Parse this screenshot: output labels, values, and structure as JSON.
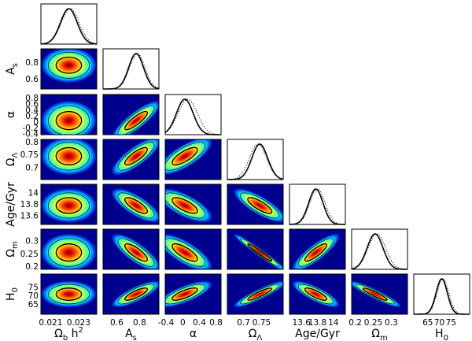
{
  "chart_data": {
    "type": "corner-plot",
    "title": "",
    "params": [
      {
        "key": "ombh2",
        "label": "Ωb h²",
        "range": [
          0.0203,
          0.0243
        ],
        "ticks": [
          "0.021",
          "0.023"
        ],
        "tickvals": [
          0.021,
          0.023
        ],
        "mean": 0.0223,
        "sigma": 0.0006,
        "mean_alt": 0.0224,
        "sigma_alt": 0.00063
      },
      {
        "key": "As",
        "label": "As",
        "range": [
          0.48,
          0.97
        ],
        "ticks": [
          "0.6",
          "0.8"
        ],
        "tickvals": [
          0.6,
          0.8
        ],
        "mean": 0.77,
        "sigma": 0.065,
        "mean_alt": 0.78,
        "sigma_alt": 0.068
      },
      {
        "key": "alpha",
        "label": "α",
        "range": [
          -0.42,
          0.92
        ],
        "ticks": [
          "-0.4",
          "0",
          "0.4",
          "0.8"
        ],
        "tickvals": [
          -0.4,
          0,
          0.4,
          0.8
        ],
        "yticks": [
          "0.8",
          "0.6",
          "0.4",
          "0.2",
          "0",
          "-0.2",
          "-0.4"
        ],
        "ytickvals": [
          0.8,
          0.6,
          0.4,
          0.2,
          0,
          -0.2,
          -0.4
        ],
        "mean": 0.05,
        "sigma": 0.2,
        "mean_alt": 0.12,
        "sigma_alt": 0.23
      },
      {
        "key": "OmL",
        "label": "ΩΛ",
        "range": [
          0.655,
          0.81
        ],
        "ticks": [
          "0.7",
          "0.75"
        ],
        "tickvals": [
          0.7,
          0.75
        ],
        "yticks": [
          "0.8",
          "0.75",
          "0.7"
        ],
        "ytickvals": [
          0.8,
          0.75,
          0.7
        ],
        "mean": 0.745,
        "sigma": 0.022,
        "mean_alt": 0.74,
        "sigma_alt": 0.024
      },
      {
        "key": "age",
        "label": "Age/Gyr",
        "range": [
          13.45,
          14.15
        ],
        "ticks": [
          "13.6",
          "13.8",
          "14"
        ],
        "tickvals": [
          13.6,
          13.8,
          14.0
        ],
        "yticks": [
          "14",
          "13.8",
          "13.6"
        ],
        "ytickvals": [
          14.0,
          13.8,
          13.6
        ],
        "mean": 13.78,
        "sigma": 0.09,
        "mean_alt": 13.8,
        "sigma_alt": 0.095
      },
      {
        "key": "Omm",
        "label": "Ωm",
        "range": [
          0.19,
          0.345
        ],
        "ticks": [
          "0.2",
          "0.25",
          "0.3"
        ],
        "tickvals": [
          0.2,
          0.25,
          0.3
        ],
        "yticks": [
          "0.3",
          "0.25",
          "0.2"
        ],
        "ytickvals": [
          0.3,
          0.25,
          0.2
        ],
        "mean": 0.255,
        "sigma": 0.022,
        "mean_alt": 0.26,
        "sigma_alt": 0.024
      },
      {
        "key": "H0",
        "label": "H0",
        "range": [
          59,
          83
        ],
        "ticks": [
          "65",
          "70",
          "75"
        ],
        "tickvals": [
          65,
          70,
          75
        ],
        "yticks": [
          "75",
          "70",
          "65"
        ],
        "ytickvals": [
          75,
          70,
          65
        ],
        "mean": 71,
        "sigma": 2.4,
        "mean_alt": 71.5,
        "sigma_alt": 2.5
      }
    ],
    "correlations": [
      [
        1,
        0,
        0,
        0,
        0,
        0,
        0
      ],
      [
        0,
        1,
        0.85,
        0.8,
        -0.75,
        -0.8,
        0.8
      ],
      [
        0,
        0.85,
        1,
        0.75,
        -0.7,
        -0.75,
        0.75
      ],
      [
        0,
        0.8,
        0.75,
        1,
        -0.8,
        -0.97,
        0.9
      ],
      [
        0,
        -0.75,
        -0.7,
        -0.8,
        1,
        0.85,
        -0.8
      ],
      [
        0,
        -0.8,
        -0.75,
        -0.97,
        0.85,
        1,
        -0.92
      ],
      [
        0,
        0.8,
        0.75,
        0.9,
        -0.8,
        -0.92,
        1
      ]
    ],
    "marginal_styles": [
      "solid",
      "dotted"
    ],
    "grid": false
  }
}
